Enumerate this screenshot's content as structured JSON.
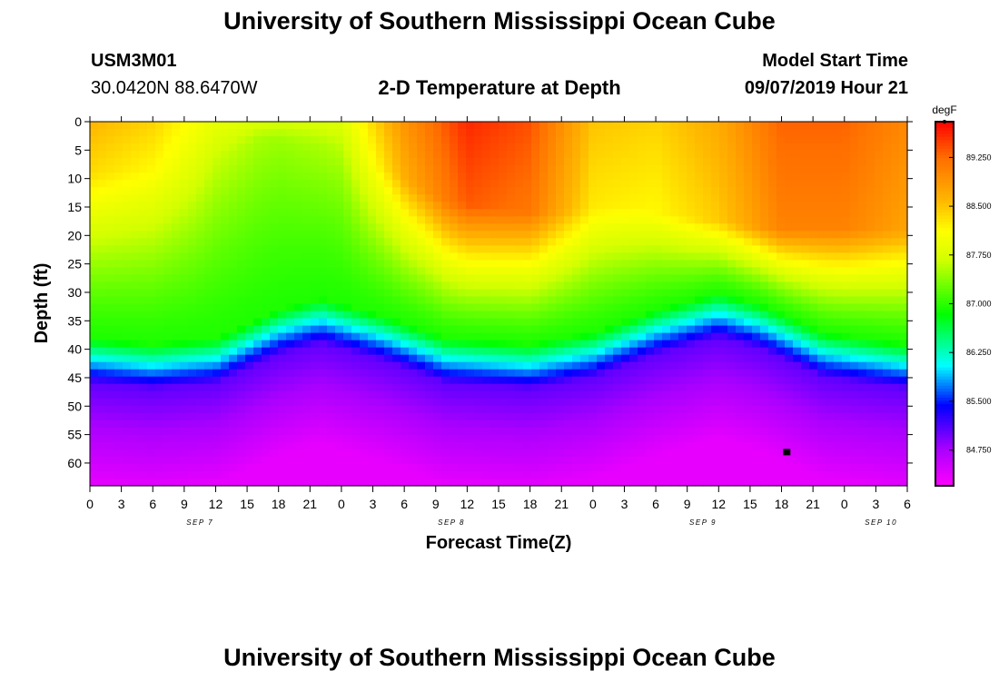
{
  "page": {
    "title_top": "University of Southern Mississippi Ocean Cube",
    "title_bottom": "University of Southern Mississippi Ocean Cube",
    "station_id": "USM3M01",
    "coordinates": "30.0420N 88.6470W",
    "product": "2-D Temperature at Depth",
    "start_label": "Model Start Time",
    "start_value": "09/07/2019 Hour 21"
  },
  "chart_data": {
    "type": "heatmap",
    "title": "2-D Temperature at Depth",
    "xlabel": "Forecast Time(Z)",
    "ylabel": "Depth (ft)",
    "x_ticks": [
      "0",
      "3",
      "6",
      "9",
      "12",
      "15",
      "18",
      "21",
      "0",
      "3",
      "6",
      "9",
      "12",
      "15",
      "18",
      "21",
      "0",
      "3",
      "6",
      "9",
      "12",
      "15",
      "18",
      "21",
      "0",
      "3",
      "6"
    ],
    "x_range_hours": [
      0,
      78
    ],
    "date_labels": [
      {
        "label": "SEP 7",
        "hour": 10.5
      },
      {
        "label": "SEP 8",
        "hour": 34.5
      },
      {
        "label": "SEP 9",
        "hour": 58.5
      },
      {
        "label": "SEP 10",
        "hour": 75.5
      }
    ],
    "y_ticks": [
      0,
      5,
      10,
      15,
      20,
      25,
      30,
      35,
      40,
      45,
      50,
      55,
      60
    ],
    "y_range": [
      0,
      64
    ],
    "colorbar": {
      "unit": "degF",
      "range": [
        84.2,
        89.8
      ],
      "tick_values": [
        89.25,
        88.5,
        87.75,
        87.0,
        86.25,
        85.5,
        84.75
      ],
      "tick_labels": [
        "89.250",
        "88.500",
        "87.750",
        "87.000",
        "86.250",
        "85.500",
        "84.750"
      ]
    },
    "thermocline_depth_ft": [
      {
        "hour": 0,
        "depth": 44
      },
      {
        "hour": 6,
        "depth": 45
      },
      {
        "hour": 12,
        "depth": 44
      },
      {
        "hour": 18,
        "depth": 39
      },
      {
        "hour": 22,
        "depth": 37
      },
      {
        "hour": 28,
        "depth": 40
      },
      {
        "hour": 34,
        "depth": 44
      },
      {
        "hour": 42,
        "depth": 45
      },
      {
        "hour": 48,
        "depth": 43
      },
      {
        "hour": 54,
        "depth": 39
      },
      {
        "hour": 60,
        "depth": 36
      },
      {
        "hour": 64,
        "depth": 38
      },
      {
        "hour": 70,
        "depth": 43
      },
      {
        "hour": 78,
        "depth": 45
      }
    ],
    "surface_temperature_degF": [
      {
        "hour": 0,
        "temp": 88.6
      },
      {
        "hour": 6,
        "temp": 88.4
      },
      {
        "hour": 12,
        "temp": 87.9
      },
      {
        "hour": 18,
        "temp": 87.7
      },
      {
        "hour": 24,
        "temp": 87.8
      },
      {
        "hour": 30,
        "temp": 88.9
      },
      {
        "hour": 36,
        "temp": 89.6
      },
      {
        "hour": 42,
        "temp": 89.4
      },
      {
        "hour": 48,
        "temp": 88.5
      },
      {
        "hour": 54,
        "temp": 88.4
      },
      {
        "hour": 60,
        "temp": 88.7
      },
      {
        "hour": 66,
        "temp": 89.3
      },
      {
        "hour": 72,
        "temp": 89.3
      },
      {
        "hour": 78,
        "temp": 89.0
      }
    ],
    "mixed_layer_depth_ft": [
      {
        "hour": 0,
        "depth": 9
      },
      {
        "hour": 10,
        "depth": 8
      },
      {
        "hour": 16,
        "depth": 3
      },
      {
        "hour": 22,
        "depth": 4
      },
      {
        "hour": 28,
        "depth": 8
      },
      {
        "hour": 34,
        "depth": 14
      },
      {
        "hour": 42,
        "depth": 16
      },
      {
        "hour": 50,
        "depth": 15
      },
      {
        "hour": 58,
        "depth": 17
      },
      {
        "hour": 66,
        "depth": 19
      },
      {
        "hour": 78,
        "depth": 19
      }
    ],
    "station_marker": {
      "hour": 66.5,
      "depth": 58
    }
  }
}
